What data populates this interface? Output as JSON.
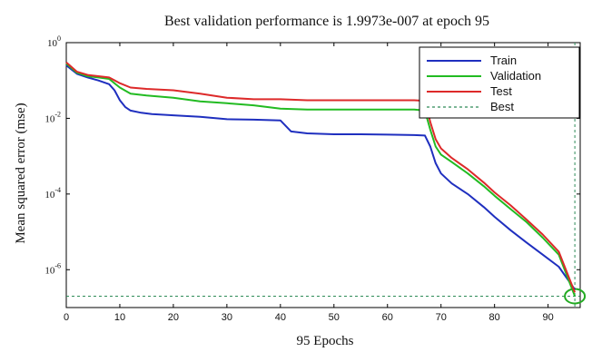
{
  "chart_data": {
    "type": "line",
    "title": "Best validation performance is 1.9973e-007 at epoch 95",
    "xlabel": "95 Epochs",
    "ylabel": "Mean squared error (mse)",
    "xlim": [
      0,
      96
    ],
    "ylim": [
      1e-07,
      1
    ],
    "yscale": "log",
    "xticks": [
      0,
      10,
      20,
      30,
      40,
      50,
      60,
      70,
      80,
      90
    ],
    "yticks": [
      {
        "value": 1,
        "base": "10",
        "exp": "0"
      },
      {
        "value": 0.01,
        "base": "10",
        "exp": "-2"
      },
      {
        "value": 0.0001,
        "base": "10",
        "exp": "-4"
      },
      {
        "value": 1e-06,
        "base": "10",
        "exp": "-6"
      }
    ],
    "grid": false,
    "legend_position": "top-right",
    "series": [
      {
        "name": "Train",
        "color": "#1f2fbf",
        "x": [
          0,
          2,
          4,
          6,
          8,
          9,
          10,
          11,
          12,
          14,
          16,
          20,
          25,
          30,
          35,
          40,
          42,
          45,
          50,
          55,
          60,
          65,
          67,
          68,
          69,
          70,
          72,
          75,
          78,
          80,
          83,
          86,
          89,
          92,
          95
        ],
        "y": [
          0.25,
          0.15,
          0.12,
          0.1,
          0.08,
          0.055,
          0.03,
          0.02,
          0.016,
          0.014,
          0.013,
          0.012,
          0.011,
          0.0095,
          0.0092,
          0.0088,
          0.0045,
          0.004,
          0.0038,
          0.0038,
          0.0037,
          0.0036,
          0.0035,
          0.0018,
          0.00065,
          0.00035,
          0.00019,
          0.0001,
          4.5e-05,
          2.5e-05,
          1.1e-05,
          5.2e-06,
          2.5e-06,
          1.2e-06,
          3e-07
        ]
      },
      {
        "name": "Validation",
        "color": "#22bb22",
        "x": [
          0,
          2,
          4,
          6,
          8,
          10,
          12,
          15,
          20,
          25,
          30,
          35,
          40,
          45,
          50,
          55,
          60,
          65,
          67,
          68,
          69,
          70,
          72,
          75,
          78,
          80,
          83,
          86,
          89,
          92,
          95
        ],
        "y": [
          0.28,
          0.16,
          0.13,
          0.12,
          0.11,
          0.065,
          0.045,
          0.04,
          0.035,
          0.028,
          0.025,
          0.022,
          0.018,
          0.017,
          0.017,
          0.017,
          0.017,
          0.017,
          0.016,
          0.005,
          0.0018,
          0.0011,
          0.0007,
          0.00035,
          0.00016,
          9e-05,
          4e-05,
          1.8e-05,
          7e-06,
          2.5e-06,
          2e-07
        ]
      },
      {
        "name": "Test",
        "color": "#dd2a2a",
        "x": [
          0,
          2,
          4,
          6,
          8,
          10,
          12,
          15,
          20,
          25,
          30,
          35,
          40,
          45,
          50,
          55,
          60,
          65,
          67,
          68,
          69,
          70,
          72,
          75,
          78,
          80,
          83,
          86,
          89,
          92,
          95
        ],
        "y": [
          0.3,
          0.17,
          0.14,
          0.13,
          0.12,
          0.085,
          0.065,
          0.06,
          0.055,
          0.045,
          0.035,
          0.032,
          0.032,
          0.03,
          0.03,
          0.03,
          0.03,
          0.03,
          0.029,
          0.008,
          0.0028,
          0.0016,
          0.0009,
          0.00045,
          0.0002,
          0.00011,
          5e-05,
          2.1e-05,
          8.5e-06,
          3e-06,
          2.5e-07
        ]
      }
    ],
    "best": {
      "name": "Best",
      "color": "#2e8b57",
      "value": 1.9973e-07,
      "epoch": 95
    }
  }
}
